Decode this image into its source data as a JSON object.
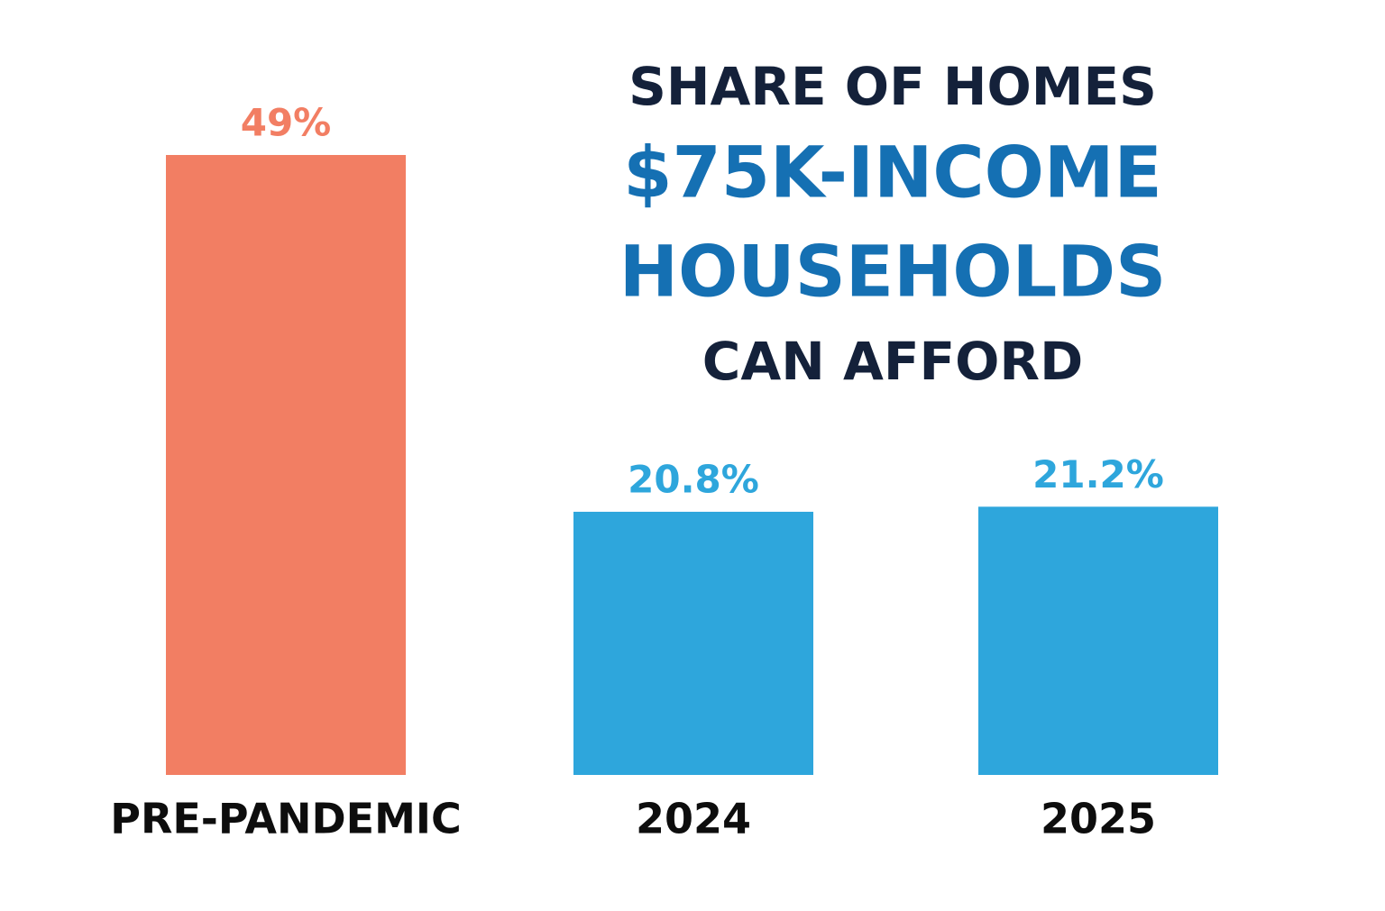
{
  "chart_data": {
    "type": "bar",
    "title": [
      "SHARE OF HOMES",
      "$75K-INCOME",
      "HOUSEHOLDS",
      "CAN AFFORD"
    ],
    "title_colors": [
      "#14213a",
      "#1570b3",
      "#1570b3",
      "#14213a"
    ],
    "categories": [
      "PRE-PANDEMIC",
      "2024",
      "2025"
    ],
    "values": [
      49,
      20.8,
      21.2
    ],
    "value_labels": [
      "49%",
      "20.8%",
      "21.2%"
    ],
    "colors": [
      "#f27e63",
      "#2ea6dc",
      "#2ea6dc"
    ]
  }
}
